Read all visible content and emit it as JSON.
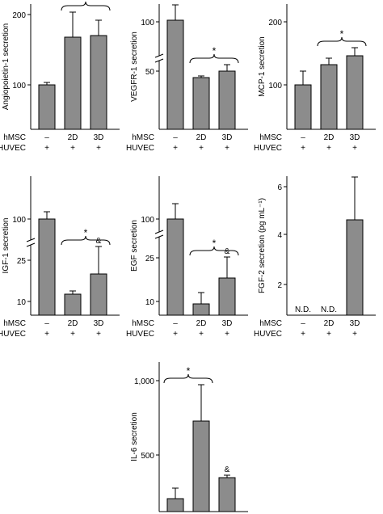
{
  "conditions": {
    "row_labels": [
      "hMSC",
      "HUVEC"
    ],
    "columns": [
      {
        "hMSC": "–",
        "HUVEC": "+"
      },
      {
        "hMSC": "2D",
        "HUVEC": "+"
      },
      {
        "hMSC": "3D",
        "HUVEC": "+"
      }
    ]
  },
  "colors": {
    "bar_fill": "#8c8c8c",
    "bar_edge": "#000000",
    "axis": "#000000"
  },
  "chart_data": [
    {
      "type": "bar",
      "ylabel": "Angiopoietin-1 secretion",
      "categories": [
        "–",
        "2D",
        "3D"
      ],
      "values": [
        101,
        176,
        178
      ],
      "errors": [
        3,
        42,
        25
      ],
      "yticks": [
        "100",
        "200"
      ],
      "ylim": [
        50,
        220
      ],
      "annotations": [
        {
          "text": "*",
          "bracket": "2D-3D"
        }
      ],
      "value_labels": [
        "",
        "",
        ""
      ]
    },
    {
      "type": "bar",
      "ylabel": "VEGFR-1 secretion",
      "categories": [
        "–",
        "2D",
        "3D"
      ],
      "values": [
        100,
        45,
        51
      ],
      "errors": [
        16,
        1.5,
        5
      ],
      "yticks": [
        "50",
        "100"
      ],
      "ylim": [
        0,
        120
      ],
      "axis_break": true,
      "annotations": [
        {
          "text": "*",
          "bracket": "2D-3D"
        }
      ],
      "value_labels": [
        "",
        "",
        ""
      ]
    },
    {
      "type": "bar",
      "ylabel": "MCP-1 secretion",
      "categories": [
        "–",
        "2D",
        "3D"
      ],
      "values": [
        100,
        130,
        144
      ],
      "errors": [
        20,
        10,
        14
      ],
      "yticks": [
        "100",
        "200"
      ],
      "ylim": [
        50,
        220
      ],
      "annotations": [
        {
          "text": "*",
          "bracket": "2D-3D"
        }
      ],
      "value_labels": [
        "",
        "",
        ""
      ]
    },
    {
      "type": "bar",
      "ylabel": "IGF-1 secretion",
      "categories": [
        "–",
        "2D",
        "3D"
      ],
      "values": [
        100,
        7,
        19
      ],
      "errors": [
        10,
        1,
        9
      ],
      "yticks": [
        "10",
        "25",
        "100"
      ],
      "ylim": [
        0,
        120
      ],
      "axis_break": true,
      "annotations": [
        {
          "text": "*",
          "bracket": "2D-3D"
        },
        {
          "text": "&",
          "over": "3D"
        }
      ],
      "value_labels": [
        "",
        "",
        ""
      ]
    },
    {
      "type": "bar",
      "ylabel": "EGF secretion",
      "categories": [
        "–",
        "2D",
        "3D"
      ],
      "values": [
        100,
        9,
        16
      ],
      "errors": [
        20,
        5,
        12
      ],
      "yticks": [
        "10",
        "25",
        "100"
      ],
      "ylim": [
        0,
        120
      ],
      "axis_break": true,
      "annotations": [
        {
          "text": "*",
          "bracket": "2D-3D"
        },
        {
          "text": "&",
          "over": "3D"
        }
      ],
      "value_labels": [
        "",
        "",
        ""
      ]
    },
    {
      "type": "bar",
      "ylabel": "FGF-2 secretion (pg mL⁻¹)",
      "categories": [
        "–",
        "2D",
        "3D"
      ],
      "values": [
        0,
        0,
        4.8
      ],
      "errors": [
        0,
        0,
        1.8
      ],
      "yticks": [
        "2",
        "4",
        "6"
      ],
      "ylim": [
        0,
        6.8
      ],
      "annotations": [],
      "value_labels": [
        "N.D.",
        "N.D.",
        ""
      ]
    },
    {
      "type": "bar",
      "ylabel": "IL-6 secretion",
      "categories": [
        "–",
        "2D",
        "3D"
      ],
      "values": [
        185,
        710,
        335
      ],
      "errors": [
        75,
        255,
        10
      ],
      "yticks": [
        "500",
        "1,000"
      ],
      "ylim": [
        0,
        1050
      ],
      "annotations": [
        {
          "text": "*",
          "bracket": "–-2D"
        },
        {
          "text": "&",
          "over": "3D"
        }
      ],
      "value_labels": [
        "",
        "",
        ""
      ]
    }
  ]
}
